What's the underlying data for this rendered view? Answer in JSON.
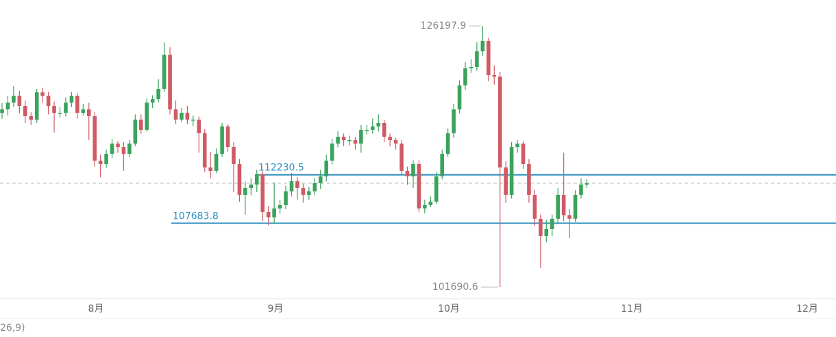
{
  "chart_data": {
    "type": "candlestick",
    "open": [
      118050,
      118370,
      119010,
      119650,
      118690,
      117730,
      117410,
      119970,
      119650,
      118690,
      118050,
      118050,
      119010,
      119650,
      118050,
      118370,
      117730,
      113560,
      113240,
      114200,
      115160,
      114840,
      114200,
      115160,
      117410,
      116450,
      119010,
      119330,
      120300,
      123500,
      118370,
      117410,
      118050,
      117410,
      117410,
      116130,
      112920,
      112600,
      114200,
      116770,
      114840,
      113240,
      110350,
      110990,
      111310,
      112280,
      108750,
      108230,
      109070,
      109390,
      110670,
      111630,
      110990,
      110350,
      110670,
      111440,
      112080,
      113560,
      115160,
      115800,
      115480,
      115480,
      115160,
      116450,
      116450,
      116770,
      117090,
      115800,
      115480,
      115160,
      112600,
      112080,
      113240,
      109070,
      109390,
      109710,
      112080,
      114200,
      116130,
      118370,
      120620,
      122220,
      122350,
      123820,
      124790,
      121580,
      121450,
      112920,
      110350,
      114840,
      115160,
      113240,
      110350,
      108110,
      106500,
      107140,
      108110,
      110350,
      108430,
      108110,
      110350,
      111310
    ],
    "high": [
      118950,
      119650,
      120550,
      120100,
      119200,
      118100,
      120300,
      120400,
      120000,
      119100,
      118600,
      119500,
      120000,
      119900,
      118900,
      119000,
      118100,
      114100,
      114600,
      115600,
      115400,
      115300,
      115500,
      117900,
      117900,
      119400,
      119700,
      121200,
      124650,
      124200,
      119200,
      118500,
      118700,
      117800,
      117700,
      116500,
      114400,
      114700,
      117100,
      117000,
      115300,
      113700,
      111600,
      111900,
      112700,
      112600,
      109300,
      111500,
      109900,
      111200,
      112400,
      112000,
      111400,
      111100,
      111900,
      112700,
      114100,
      115600,
      116300,
      116100,
      115900,
      115800,
      116900,
      116900,
      117500,
      117900,
      117400,
      116100,
      115700,
      115500,
      113000,
      113600,
      113600,
      109900,
      110200,
      112500,
      114600,
      116600,
      118900,
      121100,
      122800,
      123100,
      124700,
      126197.9,
      125100,
      122500,
      121900,
      113500,
      115300,
      115500,
      115400,
      113700,
      110800,
      108500,
      108000,
      108500,
      111000,
      114300,
      109000,
      110800,
      111900,
      111800
    ],
    "low": [
      117480,
      117800,
      118600,
      118000,
      117100,
      116900,
      117100,
      119000,
      117900,
      116200,
      117600,
      117700,
      118600,
      117500,
      117800,
      115500,
      113000,
      112000,
      112900,
      113800,
      114300,
      112600,
      113900,
      114900,
      116100,
      116300,
      118500,
      119000,
      120000,
      117900,
      117000,
      117200,
      117000,
      116800,
      114300,
      112500,
      111900,
      112400,
      113900,
      114400,
      110600,
      109700,
      108500,
      110300,
      110600,
      107900,
      107500,
      107600,
      108600,
      109000,
      110200,
      109900,
      109600,
      109900,
      110300,
      110900,
      111600,
      113200,
      114800,
      114900,
      115000,
      114600,
      114300,
      116000,
      116100,
      116300,
      115300,
      114900,
      114600,
      112200,
      111300,
      111000,
      108700,
      108600,
      109200,
      109500,
      111800,
      113900,
      115700,
      118000,
      120200,
      121800,
      122000,
      123400,
      121000,
      120700,
      101690.6,
      109600,
      110000,
      114300,
      112800,
      109600,
      107400,
      103480,
      105900,
      106500,
      107700,
      107900,
      106300,
      107800,
      110000,
      111000
    ],
    "close": [
      118370,
      119010,
      119650,
      118690,
      117730,
      117410,
      119970,
      119650,
      118690,
      118050,
      118050,
      119010,
      119650,
      118050,
      118370,
      117730,
      113560,
      113240,
      114200,
      115160,
      114840,
      114200,
      115160,
      117410,
      116450,
      119010,
      119330,
      120300,
      123500,
      118370,
      117410,
      118050,
      117410,
      117410,
      116130,
      112920,
      112600,
      114200,
      116770,
      114840,
      113240,
      110350,
      110990,
      111310,
      112280,
      108750,
      108230,
      109070,
      109390,
      110670,
      111630,
      110990,
      110350,
      110670,
      111440,
      112080,
      113560,
      115160,
      115800,
      115480,
      115480,
      115160,
      116450,
      116450,
      116770,
      117090,
      115800,
      115480,
      115160,
      112600,
      112080,
      113240,
      109070,
      109390,
      109710,
      112080,
      114200,
      116130,
      118370,
      120620,
      122220,
      122350,
      123820,
      124790,
      121580,
      121450,
      112920,
      110350,
      114840,
      115160,
      113240,
      110350,
      108110,
      106500,
      107140,
      108110,
      110350,
      108430,
      108110,
      110350,
      111310,
      111440
    ],
    "up_color": "#3aa35c",
    "down_color": "#d05a64",
    "ylim": [
      100660,
      128640
    ],
    "levels": [
      112230.5,
      107683.8
    ],
    "level_color": "#2e8fc0",
    "months": [
      "8月",
      "9月",
      "10月",
      "11月",
      "12月"
    ],
    "footer_text": "26,9)"
  }
}
